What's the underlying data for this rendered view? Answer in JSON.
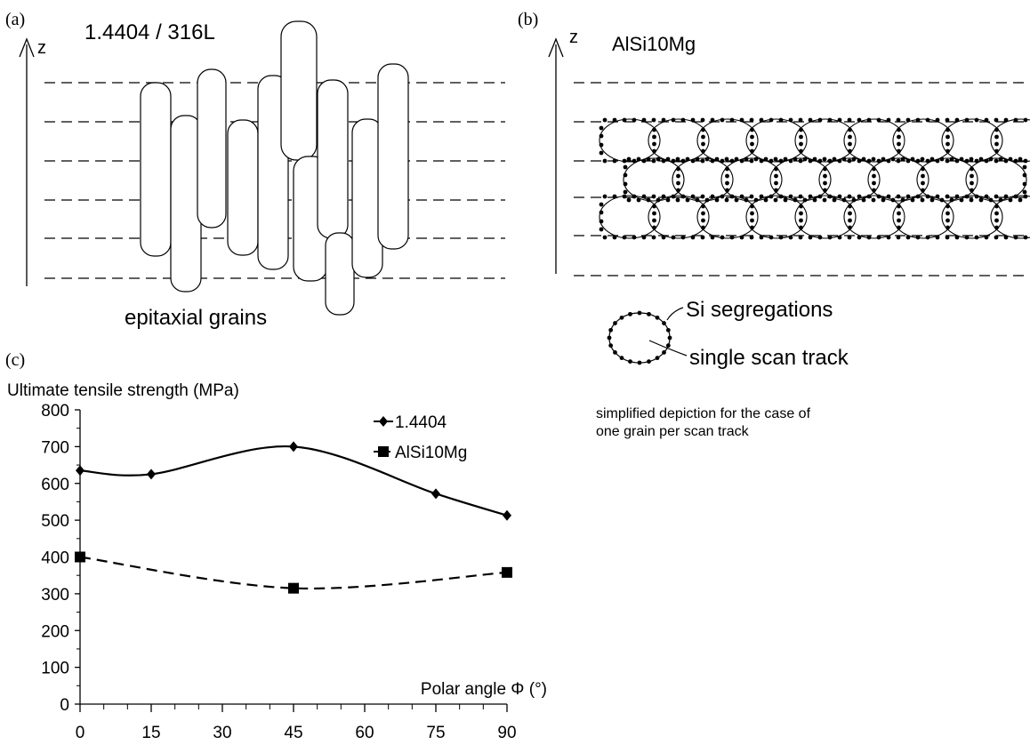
{
  "panel_a": {
    "label": "(a)",
    "title": "1.4404 / 316L",
    "axis_label": "z",
    "caption": "epitaxial grains"
  },
  "panel_b": {
    "label": "(b)",
    "title": "AlSi10Mg",
    "axis_label": "z",
    "legend_segregations": "Si segregations",
    "legend_track": "single scan track",
    "note_line1": "simplified depiction for the case of",
    "note_line2": "one grain per scan track"
  },
  "panel_c": {
    "label": "(c)"
  },
  "chart_data": {
    "type": "line",
    "ylabel": "Ultimate tensile strength (MPa)",
    "xlabel": "Polar angle Φ (°)",
    "ylim": [
      0,
      800
    ],
    "xlim": [
      0,
      90
    ],
    "yticks": [
      0,
      100,
      200,
      300,
      400,
      500,
      600,
      700,
      800
    ],
    "xticks": [
      0,
      15,
      30,
      45,
      60,
      75,
      90
    ],
    "legend_position": "top-right",
    "grid": false,
    "series": [
      {
        "name": "1.4404",
        "marker": "diamond",
        "line": "solid",
        "color": "#000000",
        "x": [
          0,
          15,
          45,
          75,
          90
        ],
        "values": [
          635,
          625,
          700,
          572,
          513
        ]
      },
      {
        "name": "AlSi10Mg",
        "marker": "square",
        "line": "dashed",
        "color": "#000000",
        "x": [
          0,
          45,
          90
        ],
        "values": [
          400,
          315,
          358
        ]
      }
    ]
  }
}
